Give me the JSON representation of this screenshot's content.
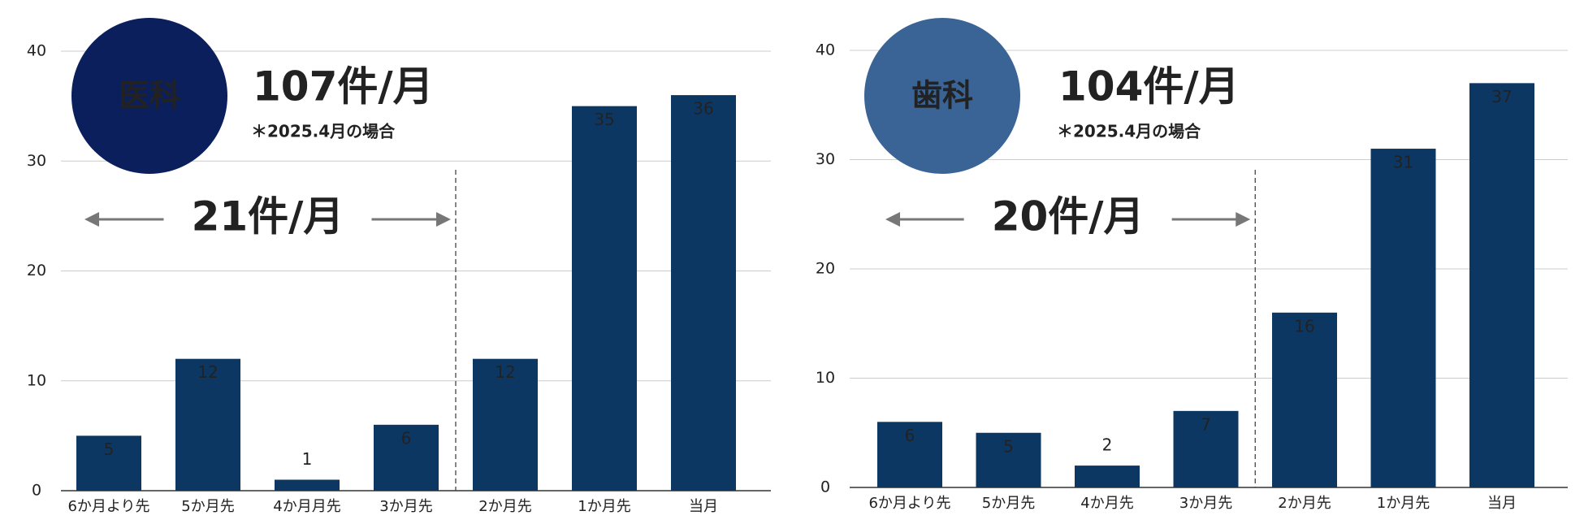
{
  "chart_data": [
    {
      "type": "bar",
      "badge": "医科",
      "badge_color": "#0b1f5c",
      "headline": "107件/月",
      "note": "＊2025.4月の場合",
      "annotation": "21件/月",
      "categories": [
        "6か月より先",
        "5か月先",
        "4か月月先",
        "3か月先",
        "2か月先",
        "1か月先",
        "当月"
      ],
      "values": [
        5,
        12,
        1,
        6,
        12,
        35,
        36
      ],
      "color": "#0d3763",
      "ylim": [
        0,
        40
      ],
      "yticks": [
        0,
        10,
        20,
        30,
        40
      ],
      "grid": true
    },
    {
      "type": "bar",
      "badge": "歯科",
      "badge_color": "#3a6496",
      "headline": "104件/月",
      "note": "＊2025.4月の場合",
      "annotation": "20件/月",
      "categories": [
        "6か月より先",
        "5か月先",
        "4か月先",
        "3か月先",
        "2か月先",
        "1か月先",
        "当月"
      ],
      "values": [
        6,
        5,
        2,
        7,
        16,
        31,
        37
      ],
      "color": "#0d3763",
      "ylim": [
        0,
        40
      ],
      "yticks": [
        0,
        10,
        20,
        30,
        40
      ],
      "grid": true
    }
  ]
}
